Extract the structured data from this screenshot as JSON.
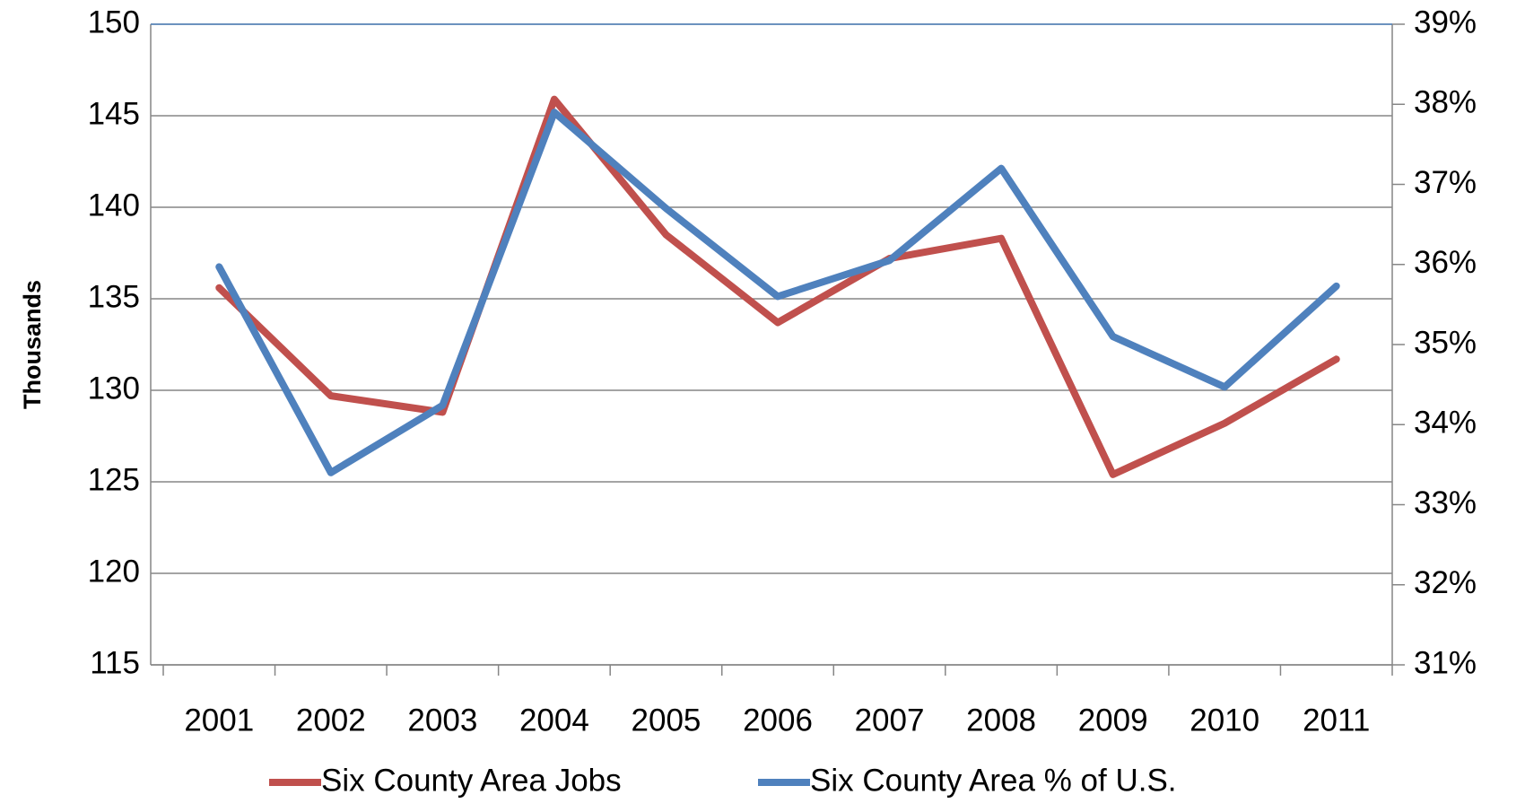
{
  "chart_data": {
    "type": "line",
    "y_label": "Thousands",
    "categories": [
      "2001",
      "2002",
      "2003",
      "2004",
      "2005",
      "2006",
      "2007",
      "2008",
      "2009",
      "2010",
      "2011"
    ],
    "series": [
      {
        "name": "Six County Area Jobs",
        "color": "#c0504d",
        "axis": "y",
        "values": [
          135.6,
          129.7,
          128.8,
          145.9,
          138.5,
          133.7,
          137.2,
          138.3,
          125.4,
          128.2,
          131.7
        ]
      },
      {
        "name": "Six County Area % of U.S.",
        "color": "#4f81bd",
        "axis": "y2",
        "values": [
          35.97,
          33.4,
          34.24,
          37.9,
          36.7,
          35.6,
          36.05,
          37.2,
          35.1,
          34.47,
          35.73
        ]
      }
    ],
    "ylim": [
      115,
      150
    ],
    "yticks": [
      115,
      120,
      125,
      130,
      135,
      140,
      145,
      150
    ],
    "y2lim": [
      31,
      39
    ],
    "y2ticks": [
      {
        "value": 31,
        "label": "31%"
      },
      {
        "value": 32,
        "label": "32%"
      },
      {
        "value": 33,
        "label": "33%"
      },
      {
        "value": 34,
        "label": "34%"
      },
      {
        "value": 35,
        "label": "35%"
      },
      {
        "value": 36,
        "label": "36%"
      },
      {
        "value": 37,
        "label": "37%"
      },
      {
        "value": 38,
        "label": "38%"
      },
      {
        "value": 39,
        "label": "39%"
      }
    ],
    "grid": true,
    "legend": "bottom"
  }
}
